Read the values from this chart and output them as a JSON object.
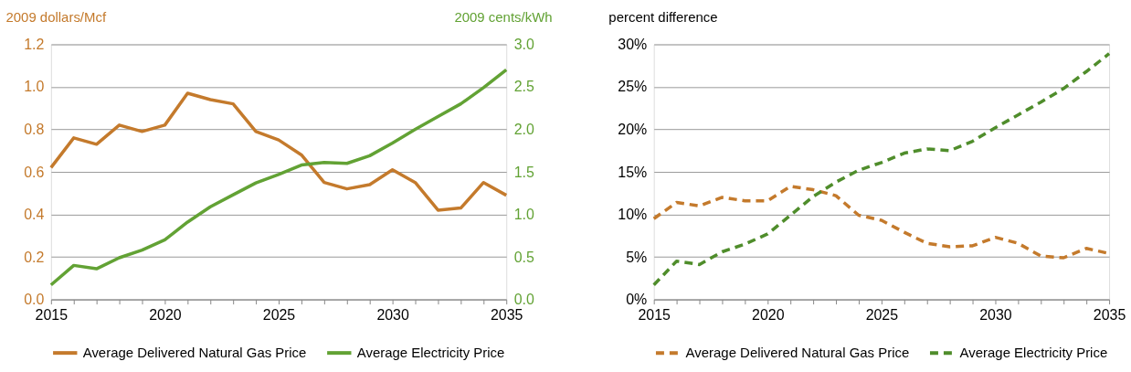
{
  "chart_data": [
    {
      "type": "line",
      "ylabel": "2009 dollars/Mcf",
      "y2label": "2009 cents/kWh",
      "x": [
        2015,
        2016,
        2017,
        2018,
        2019,
        2020,
        2021,
        2022,
        2023,
        2024,
        2025,
        2026,
        2027,
        2028,
        2029,
        2030,
        2031,
        2032,
        2033,
        2034,
        2035
      ],
      "series": [
        {
          "name": "Average Delivered Natural Gas Price",
          "color": "#c47a2c",
          "values": [
            0.62,
            0.76,
            0.73,
            0.82,
            0.79,
            0.82,
            0.97,
            0.94,
            0.92,
            0.79,
            0.75,
            0.68,
            0.55,
            0.52,
            0.54,
            0.61,
            0.55,
            0.42,
            0.43,
            0.55,
            0.49
          ]
        },
        {
          "name": "Average Electricity Price",
          "color": "#62a234",
          "axis": "y2",
          "values": [
            0.17,
            0.4,
            0.36,
            0.49,
            0.58,
            0.7,
            0.91,
            1.09,
            1.23,
            1.37,
            1.47,
            1.58,
            1.61,
            1.6,
            1.69,
            1.84,
            2.0,
            2.15,
            2.3,
            2.49,
            2.7
          ]
        }
      ],
      "xlim": [
        2015,
        2035
      ],
      "xticks": [
        2015,
        {
          "value": 2016,
          "label": null
        },
        {
          "value": 2017,
          "label": null
        },
        {
          "value": 2018,
          "label": null
        },
        {
          "value": 2019,
          "label": null
        },
        2020,
        {
          "value": 2021,
          "label": null
        },
        {
          "value": 2022,
          "label": null
        },
        {
          "value": 2023,
          "label": null
        },
        {
          "value": 2024,
          "label": null
        },
        2025,
        {
          "value": 2026,
          "label": null
        },
        {
          "value": 2027,
          "label": null
        },
        {
          "value": 2028,
          "label": null
        },
        {
          "value": 2029,
          "label": null
        },
        2030,
        {
          "value": 2031,
          "label": null
        },
        {
          "value": 2032,
          "label": null
        },
        {
          "value": 2033,
          "label": null
        },
        {
          "value": 2034,
          "label": null
        },
        2035
      ],
      "ylim": [
        0,
        1.2
      ],
      "yticks": [
        {
          "value": 0,
          "label": "0.0"
        },
        0.2,
        0.4,
        0.6,
        0.8,
        {
          "value": 1,
          "label": "1.0"
        },
        1.2
      ],
      "y2lim": [
        0,
        3
      ],
      "y2ticks": [
        {
          "value": 0,
          "label": "0.0"
        },
        0.5,
        {
          "value": 1,
          "label": "1.0"
        },
        1.5,
        {
          "value": 2,
          "label": "2.0"
        },
        2.5,
        {
          "value": 3,
          "label": "3.0"
        }
      ],
      "grid": "y",
      "legend": "bottom",
      "line_style": "solid",
      "marker": "none"
    },
    {
      "type": "line",
      "ylabel": "percent difference",
      "x": [
        2015,
        2016,
        2017,
        2018,
        2019,
        2020,
        2021,
        2022,
        2023,
        2024,
        2025,
        2026,
        2027,
        2028,
        2029,
        2030,
        2031,
        2032,
        2033,
        2034,
        2035
      ],
      "series": [
        {
          "name": "Average Delivered Natural Gas Price",
          "color": "#c47a2c",
          "values": [
            9.5,
            11.4,
            11.0,
            12.0,
            11.6,
            11.6,
            13.3,
            12.9,
            12.2,
            9.9,
            9.3,
            7.9,
            6.6,
            6.2,
            6.3,
            7.3,
            6.6,
            5.1,
            4.9,
            6.0,
            5.4
          ]
        },
        {
          "name": "Average Electricity Price",
          "color": "#4f8d2b",
          "values": [
            1.7,
            4.5,
            4.1,
            5.6,
            6.5,
            7.7,
            9.9,
            12.1,
            13.8,
            15.2,
            16.1,
            17.2,
            17.7,
            17.5,
            18.6,
            20.2,
            21.7,
            23.2,
            24.8,
            26.8,
            28.9
          ]
        }
      ],
      "xlim": [
        2015,
        2035
      ],
      "xticks": [
        2015,
        {
          "value": 2016,
          "label": null
        },
        {
          "value": 2017,
          "label": null
        },
        {
          "value": 2018,
          "label": null
        },
        {
          "value": 2019,
          "label": null
        },
        2020,
        {
          "value": 2021,
          "label": null
        },
        {
          "value": 2022,
          "label": null
        },
        {
          "value": 2023,
          "label": null
        },
        {
          "value": 2024,
          "label": null
        },
        2025,
        {
          "value": 2026,
          "label": null
        },
        {
          "value": 2027,
          "label": null
        },
        {
          "value": 2028,
          "label": null
        },
        {
          "value": 2029,
          "label": null
        },
        2030,
        {
          "value": 2031,
          "label": null
        },
        {
          "value": 2032,
          "label": null
        },
        {
          "value": 2033,
          "label": null
        },
        {
          "value": 2034,
          "label": null
        },
        2035
      ],
      "ylim": [
        0,
        30
      ],
      "yticks": [
        {
          "value": 0,
          "label": "0%"
        },
        {
          "value": 5,
          "label": "5%"
        },
        {
          "value": 10,
          "label": "10%"
        },
        {
          "value": 15,
          "label": "15%"
        },
        {
          "value": 20,
          "label": "20%"
        },
        {
          "value": 25,
          "label": "25%"
        },
        {
          "value": 30,
          "label": "30%"
        }
      ],
      "grid": "y",
      "legend": "bottom",
      "line_style": "dashed",
      "marker": "none"
    }
  ]
}
